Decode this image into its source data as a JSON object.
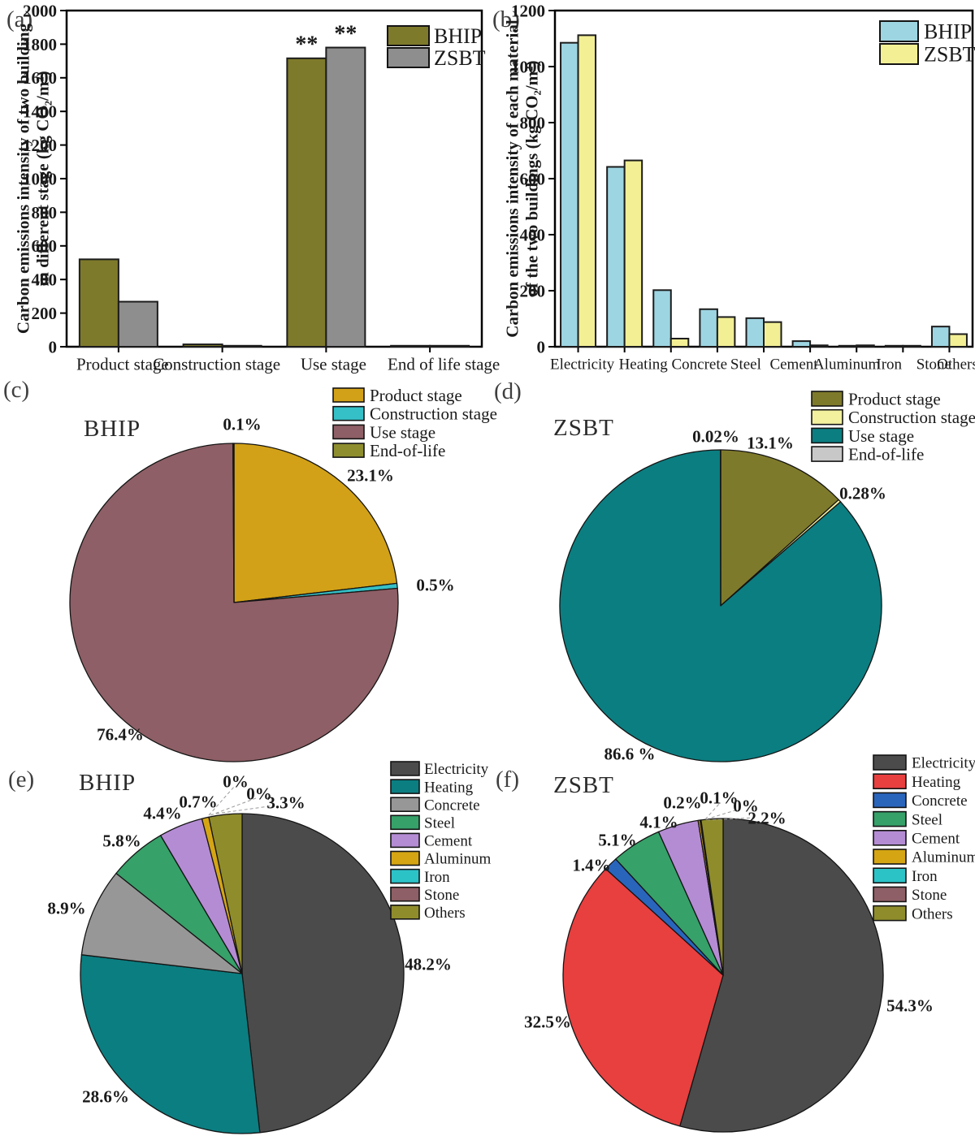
{
  "chart_data": [
    {
      "panel": "(a)",
      "type": "bar",
      "ylabel_lines": [
        "Carbon emissions intensity of two building",
        "in different stage (kg CO₂/m²)"
      ],
      "ylim": [
        0,
        2000
      ],
      "ytick_step": 200,
      "categories": [
        "Product stage",
        "Construction stage",
        "Use stage",
        "End of life stage"
      ],
      "series": [
        {
          "name": "BHIP",
          "color": "#7e7a2b",
          "values": [
            520,
            14,
            1716,
            3
          ]
        },
        {
          "name": "ZSBT",
          "color": "#8e8e8e",
          "values": [
            268,
            4,
            1780,
            3
          ]
        }
      ],
      "annotations": [
        {
          "category": "Use stage",
          "text": "**"
        }
      ],
      "legend_position": "top-right",
      "grid": false
    },
    {
      "panel": "(b)",
      "type": "bar",
      "ylabel_lines": [
        "Carbon emissions intensity of  each material",
        "of the two buildings (kg CO₂/m²)"
      ],
      "ylim": [
        0,
        1200
      ],
      "ytick_step": 200,
      "categories": [
        "Electricity",
        "Heating",
        "Concrete",
        "Steel",
        "Cement",
        "Aluminum",
        "Iron",
        "Stone",
        "Others"
      ],
      "series": [
        {
          "name": "BHIP",
          "color": "#9ed5e2",
          "values": [
            1085,
            642,
            202,
            134,
            102,
            20,
            2,
            1,
            72
          ]
        },
        {
          "name": "ZSBT",
          "color": "#f2ef95",
          "values": [
            1112,
            665,
            29,
            106,
            88,
            5,
            5,
            2,
            45
          ]
        }
      ],
      "annotations": [],
      "legend_position": "top-right",
      "grid": false
    },
    {
      "panel": "(c)",
      "type": "pie",
      "title": "BHIP",
      "slices": [
        {
          "label": "Product stage",
          "value": 23.1,
          "pct_label": "23.1%",
          "color": "#d2a117"
        },
        {
          "label": "Construction stage",
          "value": 0.5,
          "pct_label": "0.5%",
          "color": "#35c0c7"
        },
        {
          "label": "Use stage",
          "value": 76.4,
          "pct_label": "76.4%",
          "color": "#8e5f66"
        },
        {
          "label": "End-of-life",
          "value": 0.1,
          "pct_label": "0.1%",
          "color": "#8e8e2f"
        }
      ],
      "legend_position": "top-right"
    },
    {
      "panel": "(d)",
      "type": "pie",
      "title": "ZSBT",
      "slices": [
        {
          "label": "Product stage",
          "value": 13.1,
          "pct_label": "13.1%",
          "color": "#7e7a2b"
        },
        {
          "label": "Construction stage",
          "value": 0.28,
          "pct_label": "0.28%",
          "color": "#f3f09e"
        },
        {
          "label": "Use stage",
          "value": 86.6,
          "pct_label": "86.6 %",
          "color": "#0b7e81"
        },
        {
          "label": "End-of-life",
          "value": 0.02,
          "pct_label": "0.02%",
          "color": "#c8c8c8"
        }
      ],
      "legend_position": "top-right"
    },
    {
      "panel": "(e)",
      "type": "pie",
      "title": "BHIP",
      "slices": [
        {
          "label": "Electricity",
          "value": 48.2,
          "pct_label": "48.2%",
          "color": "#4b4b4b"
        },
        {
          "label": "Heating",
          "value": 28.6,
          "pct_label": "28.6%",
          "color": "#0b7e81"
        },
        {
          "label": "Concrete",
          "value": 8.9,
          "pct_label": "8.9%",
          "color": "#979797"
        },
        {
          "label": "Steel",
          "value": 5.8,
          "pct_label": "5.8%",
          "color": "#36a169"
        },
        {
          "label": "Cement",
          "value": 4.4,
          "pct_label": "4.4%",
          "color": "#b48cd4"
        },
        {
          "label": "Aluminum",
          "value": 0.7,
          "pct_label": "0.7%",
          "color": "#d5a514"
        },
        {
          "label": "Iron",
          "value": 0,
          "pct_label": "0%",
          "color": "#2cc3c7"
        },
        {
          "label": "Stone",
          "value": 0,
          "pct_label": "0%",
          "color": "#8e5f66"
        },
        {
          "label": "Others",
          "value": 3.3,
          "pct_label": "3.3%",
          "color": "#8f8c2c"
        }
      ],
      "legend_position": "top-right"
    },
    {
      "panel": "(f)",
      "type": "pie",
      "title": "ZSBT",
      "slices": [
        {
          "label": "Electricity",
          "value": 54.3,
          "pct_label": "54.3%",
          "color": "#4b4b4b"
        },
        {
          "label": "Heating",
          "value": 32.5,
          "pct_label": "32.5%",
          "color": "#e83f3f"
        },
        {
          "label": "Concrete",
          "value": 1.4,
          "pct_label": "1.4%",
          "color": "#2a65bc"
        },
        {
          "label": "Steel",
          "value": 5.1,
          "pct_label": "5.1%",
          "color": "#36a169"
        },
        {
          "label": "Cement",
          "value": 4.1,
          "pct_label": "4.1%",
          "color": "#b48cd4"
        },
        {
          "label": "Aluminum",
          "value": 0.2,
          "pct_label": "0.2%",
          "color": "#d5a514"
        },
        {
          "label": "Iron",
          "value": 0.1,
          "pct_label": "0.1%",
          "color": "#2cc3c7"
        },
        {
          "label": "Stone",
          "value": 0,
          "pct_label": "0%",
          "color": "#8e5f66"
        },
        {
          "label": "Others",
          "value": 2.2,
          "pct_label": "2.2%",
          "color": "#8f8c2c"
        }
      ],
      "legend_position": "top-right"
    }
  ]
}
